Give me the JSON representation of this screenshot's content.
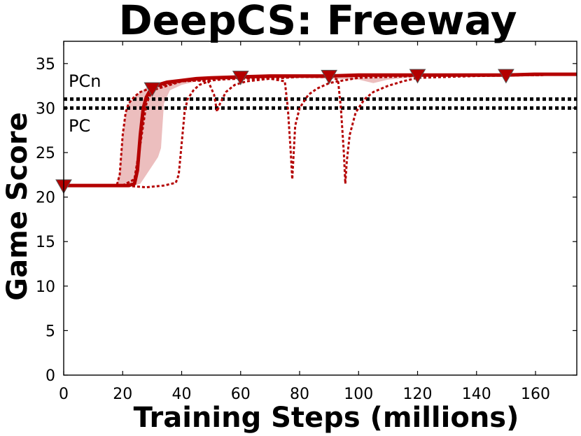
{
  "chart_data": {
    "type": "line",
    "title": "DeepCS: Freeway",
    "xlabel": "Training Steps (millions)",
    "ylabel": "Game Score",
    "xlim": [
      0,
      174
    ],
    "ylim": [
      0,
      37.5
    ],
    "xticks": [
      0,
      20,
      40,
      60,
      80,
      100,
      120,
      140,
      160
    ],
    "yticks": [
      0,
      5,
      10,
      15,
      20,
      25,
      30,
      35
    ],
    "grid": false,
    "reference_lines": [
      {
        "label": "PCn",
        "y": 31.0,
        "style": "dotted",
        "color": "#000000"
      },
      {
        "label": "PC",
        "y": 30.0,
        "style": "dotted",
        "color": "#000000"
      }
    ],
    "series": [
      {
        "role": "mean",
        "style": "solid",
        "color": "#b40000",
        "x": [
          0,
          5,
          10,
          15,
          20,
          22,
          24,
          25,
          26,
          27,
          28,
          29,
          30,
          32,
          35,
          40,
          45,
          50,
          60,
          70,
          80,
          90,
          100,
          110,
          120,
          130,
          140,
          150,
          160,
          174
        ],
        "y": [
          21.3,
          21.3,
          21.3,
          21.3,
          21.3,
          21.3,
          21.5,
          23,
          27,
          30,
          31.2,
          31.8,
          32.2,
          32.6,
          32.9,
          33.1,
          33.3,
          33.4,
          33.5,
          33.6,
          33.6,
          33.6,
          33.7,
          33.7,
          33.7,
          33.7,
          33.7,
          33.7,
          33.8,
          33.8
        ]
      },
      {
        "role": "run",
        "style": "dotted",
        "color": "#b40000",
        "x": [
          0,
          10,
          18,
          19,
          20,
          21,
          22,
          24,
          26,
          30,
          35,
          40,
          45,
          50,
          60,
          80,
          100,
          120,
          140,
          160,
          174
        ],
        "y": [
          21.3,
          21.3,
          21.3,
          22.5,
          27,
          29.5,
          30.5,
          31.3,
          31.8,
          32.3,
          32.7,
          33,
          33.2,
          33.3,
          33.4,
          33.6,
          33.6,
          33.7,
          33.7,
          33.7,
          33.8
        ]
      },
      {
        "role": "run",
        "style": "dotted",
        "color": "#b40000",
        "x": [
          0,
          10,
          20,
          28,
          34,
          38,
          39,
          40,
          41,
          42,
          44,
          46,
          50,
          60,
          80,
          100,
          120,
          140,
          160,
          174
        ],
        "y": [
          21.3,
          21.3,
          21.3,
          21.1,
          21.3,
          21.6,
          22.5,
          26,
          29.5,
          31,
          32,
          32.6,
          33.1,
          33.4,
          33.5,
          33.6,
          33.7,
          33.7,
          33.7,
          33.8
        ]
      },
      {
        "role": "run",
        "style": "dotted",
        "color": "#b40000",
        "x": [
          0,
          10,
          20,
          24,
          26,
          28,
          30,
          35,
          40,
          45,
          49,
          51,
          52,
          53,
          55,
          58,
          62,
          70,
          80,
          100,
          120,
          140,
          160,
          174
        ],
        "y": [
          21.3,
          21.3,
          21.3,
          22,
          26,
          30.5,
          32,
          32.8,
          33,
          33.1,
          33.0,
          31.5,
          29.6,
          30.5,
          31.8,
          32.6,
          33.0,
          33.3,
          33.5,
          33.6,
          33.7,
          33.7,
          33.7,
          33.8
        ]
      },
      {
        "role": "run",
        "style": "dotted",
        "color": "#b40000",
        "x": [
          0,
          10,
          20,
          24,
          26,
          28,
          30,
          40,
          50,
          60,
          70,
          75,
          76,
          77,
          77.5,
          78,
          78.5,
          80,
          83,
          86,
          90,
          93,
          100,
          120,
          140,
          160,
          174
        ],
        "y": [
          21.3,
          21.3,
          21.3,
          22,
          26,
          30.5,
          32,
          33,
          33.2,
          33.3,
          33.3,
          33.0,
          30,
          25,
          22.0,
          25,
          28,
          30,
          31.5,
          32.2,
          32.8,
          33.0,
          33.4,
          33.6,
          33.7,
          33.7,
          33.8
        ]
      },
      {
        "role": "run",
        "style": "dotted",
        "color": "#b40000",
        "x": [
          0,
          10,
          20,
          24,
          26,
          28,
          30,
          40,
          50,
          60,
          70,
          80,
          90,
          93,
          94,
          95,
          95.5,
          96,
          97,
          99,
          102,
          105,
          110,
          115,
          120,
          140,
          160,
          174
        ],
        "y": [
          21.3,
          21.3,
          21.3,
          22,
          26,
          30.5,
          32,
          33,
          33.2,
          33.3,
          33.4,
          33.5,
          33.5,
          33.2,
          30,
          25,
          21.5,
          24,
          27,
          29.5,
          31,
          31.8,
          32.5,
          33.0,
          33.4,
          33.6,
          33.7,
          33.8
        ]
      }
    ],
    "band": {
      "color": "#e6a8a8",
      "x": [
        0,
        18,
        19,
        20,
        21,
        22,
        24,
        26,
        28,
        30,
        32,
        33,
        34,
        36,
        40,
        45,
        50,
        60,
        80,
        100,
        105,
        110,
        120,
        140,
        160,
        174
      ],
      "upper": [
        21.4,
        21.4,
        23,
        27,
        29.5,
        30.5,
        31.3,
        31.8,
        32.3,
        32.6,
        32.8,
        32.9,
        33.0,
        33.1,
        33.2,
        33.3,
        33.4,
        33.5,
        33.6,
        33.6,
        33.6,
        33.7,
        33.7,
        33.7,
        33.8,
        33.8
      ],
      "lower": [
        21.2,
        21.2,
        21.2,
        21.2,
        21.2,
        21.2,
        21.3,
        21.5,
        22.5,
        23.5,
        24.5,
        25.5,
        30.5,
        32.0,
        32.6,
        33.0,
        33.2,
        33.3,
        33.4,
        33.2,
        32.8,
        33.2,
        33.5,
        33.6,
        33.7,
        33.7
      ]
    },
    "markers": {
      "shape": "triangle-down",
      "color": "#b40000",
      "x": [
        0,
        30,
        60,
        90,
        120,
        150
      ],
      "y": [
        21.3,
        32.2,
        33.5,
        33.6,
        33.7,
        33.7
      ]
    }
  }
}
